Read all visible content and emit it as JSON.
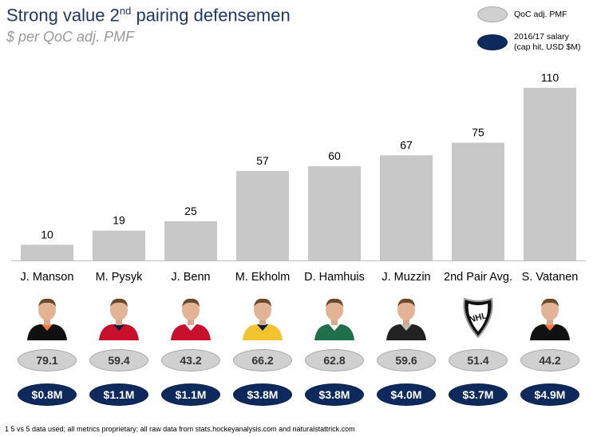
{
  "title": {
    "main": "Strong value 2",
    "superscript": "nd",
    "rest": " pairing defensemen"
  },
  "subtitle": "$ per QoC adj. PMF",
  "legend": [
    {
      "label_lines": [
        "QoC adj. PMF"
      ],
      "color": "#d0d0d0"
    },
    {
      "label_lines": [
        "2016/17 salary",
        "(cap hit, USD $M)"
      ],
      "color": "#0e2a5c"
    }
  ],
  "colors": {
    "bar": "#c8c8c8",
    "title": "#1f3864",
    "salary": "#0e2a5c",
    "metric": "#d0d0d0"
  },
  "chart_data": {
    "type": "bar",
    "title": "Strong value 2nd pairing defensemen",
    "subtitle": "$ per QoC adj. PMF",
    "categories": [
      "J. Manson",
      "M. Pysyk",
      "J. Benn",
      "M. Ekholm",
      "D. Hamhuis",
      "J. Muzzin",
      "2nd Pair Avg.",
      "S. Vatanen"
    ],
    "values": [
      10,
      19,
      25,
      57,
      60,
      67,
      75,
      110
    ],
    "ylim": [
      0,
      115
    ],
    "grid": false,
    "legend_position": "top-right",
    "data_labels": [
      "10",
      "19",
      "25",
      "57",
      "60",
      "67",
      "75",
      "110"
    ]
  },
  "players": [
    {
      "name": "J. Manson",
      "photo": "ducks-player-photo",
      "qoc_pmf": "79.1",
      "salary": "$0.8M"
    },
    {
      "name": "M. Pysyk",
      "photo": "panthers-player-photo",
      "qoc_pmf": "59.4",
      "salary": "$1.1M"
    },
    {
      "name": "J. Benn",
      "photo": "canadiens-player-photo",
      "qoc_pmf": "43.2",
      "salary": "$1.1M"
    },
    {
      "name": "M. Ekholm",
      "photo": "predators-player-photo",
      "qoc_pmf": "66.2",
      "salary": "$3.8M"
    },
    {
      "name": "D. Hamhuis",
      "photo": "stars-player-photo",
      "qoc_pmf": "62.8",
      "salary": "$3.8M"
    },
    {
      "name": "J. Muzzin",
      "photo": "kings-player-photo",
      "qoc_pmf": "59.6",
      "salary": "$4.0M"
    },
    {
      "name": "2nd Pair Avg.",
      "photo": "nhl-shield-logo",
      "qoc_pmf": "51.4",
      "salary": "$3.7M"
    },
    {
      "name": "S. Vatanen",
      "photo": "ducks-player-photo",
      "qoc_pmf": "44.2",
      "salary": "$4.9M"
    }
  ],
  "footnote": "1 5 vs 5 data used; all metrics proprietary; all raw data from stats.hockeyanalysis.com and naturalstattrick.com"
}
